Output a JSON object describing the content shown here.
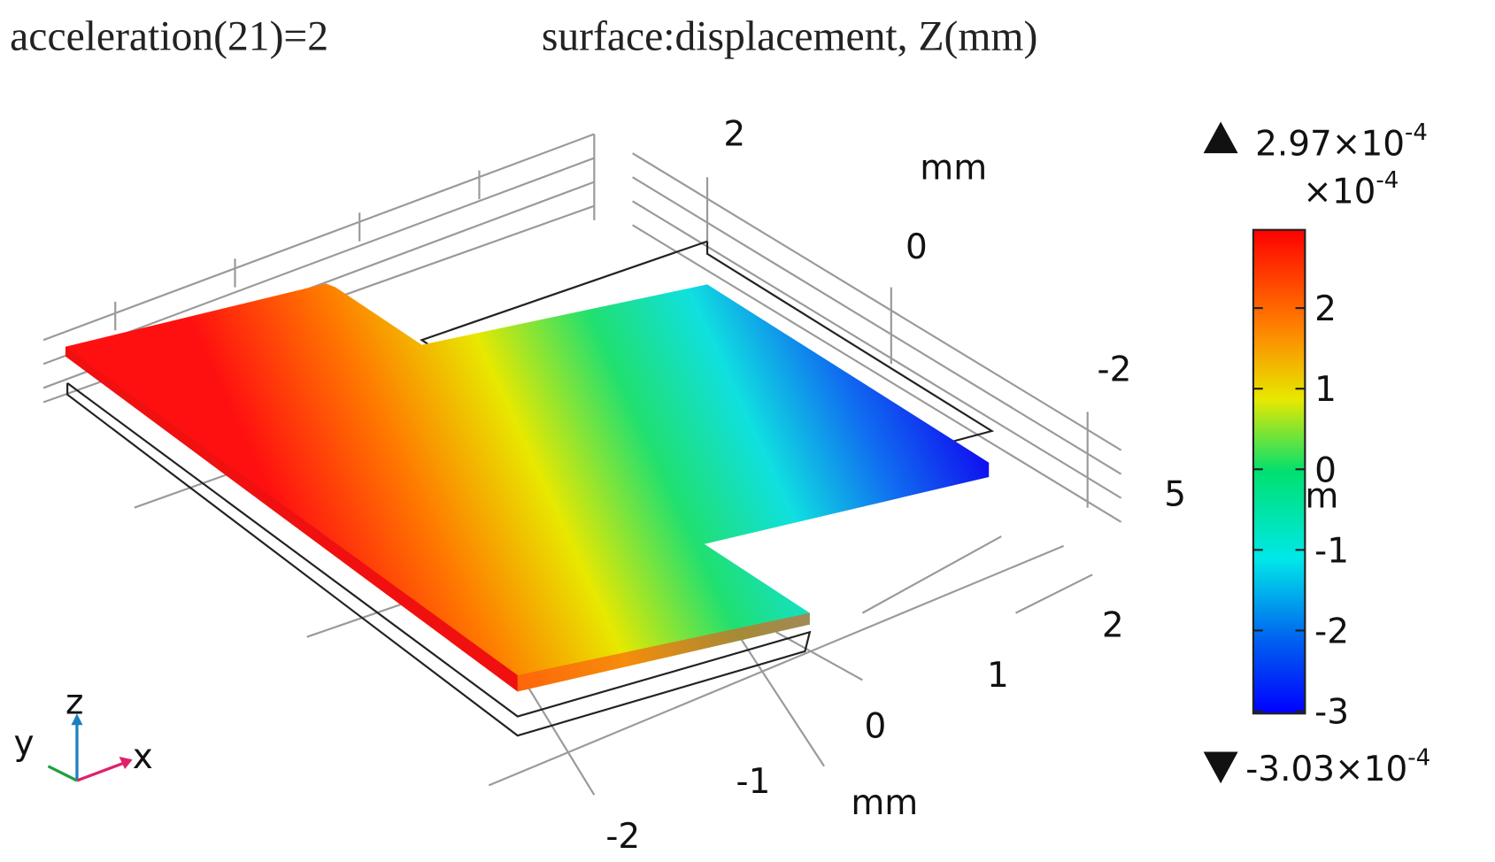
{
  "header": {
    "left": "acceleration(21)=2",
    "right": "surface:displacement, Z(mm)"
  },
  "axes": {
    "z_ticks": [
      "2",
      "0",
      "-2"
    ],
    "z_unit": "mm",
    "y_ticks": [
      "5",
      "2",
      "1",
      "0",
      "-1",
      "-2"
    ],
    "y_unit": "mm",
    "hidden_unit": "m"
  },
  "triad": {
    "z": "z",
    "y": "y",
    "x": "x"
  },
  "colorbar": {
    "max": {
      "mantissa": "2.97×10",
      "exponent": "-4"
    },
    "multiplier": {
      "mantissa": "×10",
      "exponent": "-4"
    },
    "min": {
      "mantissa": "-3.03×10",
      "exponent": "-4"
    },
    "lim": [
      -3.03,
      2.97
    ],
    "ticks": [
      2,
      1,
      0,
      -1,
      -2,
      -3
    ]
  }
}
